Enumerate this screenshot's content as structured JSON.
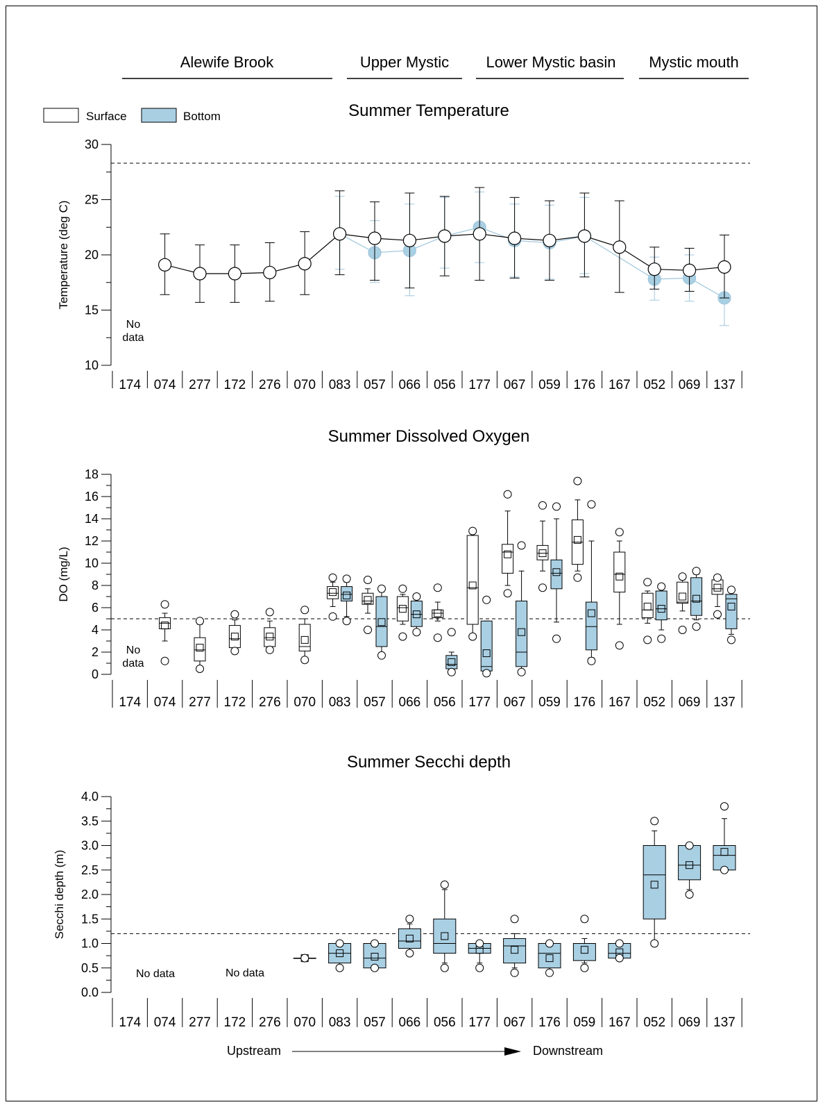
{
  "regions": [
    {
      "label": "Alewife Brook"
    },
    {
      "label": "Upper Mystic"
    },
    {
      "label": "Lower Mystic basin"
    },
    {
      "label": "Mystic mouth"
    }
  ],
  "legend": {
    "surface": "Surface",
    "bottom": "Bottom"
  },
  "colors": {
    "bottom_fill": "#a9cfe3",
    "bottom_line": "#9fc6dc",
    "surface_fill": "#ffffff",
    "ink": "#000000"
  },
  "direction": {
    "upstream": "Upstream",
    "downstream": "Downstream"
  },
  "chart_data": [
    {
      "type": "line",
      "title": "Summer Temperature",
      "ylabel": "Temperature (deg C)",
      "ylim": [
        10,
        30
      ],
      "yticks": [
        10,
        15,
        20,
        25,
        30
      ],
      "reference_line": 28.3,
      "categories": [
        "174",
        "074",
        "277",
        "172",
        "276",
        "070",
        "083",
        "057",
        "066",
        "056",
        "177",
        "067",
        "059",
        "176",
        "167",
        "052",
        "069",
        "137"
      ],
      "no_data_label": "No\ndata",
      "series": [
        {
          "name": "Surface",
          "mean": [
            null,
            19.1,
            18.3,
            18.3,
            18.4,
            19.2,
            21.9,
            21.5,
            21.3,
            21.7,
            21.9,
            21.5,
            21.3,
            21.7,
            20.7,
            18.7,
            18.6,
            18.9
          ],
          "lower": [
            null,
            16.4,
            15.7,
            15.7,
            15.8,
            16.4,
            18.2,
            17.7,
            17.0,
            18.1,
            17.7,
            17.9,
            17.7,
            18.0,
            16.6,
            16.9,
            16.7,
            16.1
          ],
          "upper": [
            null,
            21.9,
            20.9,
            20.9,
            21.1,
            22.1,
            25.8,
            24.8,
            25.6,
            25.3,
            26.1,
            25.2,
            24.9,
            25.6,
            24.9,
            20.7,
            20.6,
            21.8
          ]
        },
        {
          "name": "Bottom",
          "mean": [
            null,
            null,
            null,
            null,
            null,
            null,
            21.9,
            20.2,
            20.4,
            21.7,
            22.5,
            21.3,
            21.1,
            21.7,
            null,
            17.8,
            17.9,
            16.1
          ],
          "lower": [
            null,
            null,
            null,
            null,
            null,
            null,
            18.7,
            17.5,
            16.3,
            18.8,
            19.3,
            18.0,
            17.8,
            18.3,
            null,
            15.9,
            15.8,
            13.6
          ],
          "upper": [
            null,
            null,
            null,
            null,
            null,
            null,
            25.3,
            23.1,
            24.6,
            25.2,
            25.7,
            24.6,
            24.5,
            25.2,
            null,
            19.8,
            20.0,
            19.0
          ]
        }
      ]
    },
    {
      "type": "box",
      "title": "Summer Dissolved Oxygen",
      "ylabel": "DO (mg/L)",
      "ylim": [
        0,
        18
      ],
      "yticks": [
        0,
        2,
        4,
        6,
        8,
        10,
        12,
        14,
        16,
        18
      ],
      "reference_line": 5,
      "categories": [
        "174",
        "074",
        "277",
        "172",
        "276",
        "070",
        "083",
        "057",
        "066",
        "056",
        "177",
        "067",
        "059",
        "176",
        "167",
        "052",
        "069",
        "137"
      ],
      "no_data_label": "No\ndata",
      "series": [
        {
          "name": "Surface",
          "boxes": [
            null,
            {
              "q1": 4.1,
              "med": 4.6,
              "q3": 5.1,
              "lw": 3.0,
              "uw": 5.5,
              "mean": 4.4,
              "outliers": [
                6.3,
                1.2
              ]
            },
            {
              "q1": 1.2,
              "med": 2.2,
              "q3": 3.3,
              "lw": 0.7,
              "uw": 4.5,
              "mean": 2.4,
              "outliers": [
                4.8,
                0.5
              ]
            },
            {
              "q1": 2.4,
              "med": 3.2,
              "q3": 4.4,
              "lw": 2.1,
              "uw": 4.9,
              "mean": 3.4,
              "outliers": [
                5.4,
                2.1
              ]
            },
            {
              "q1": 2.5,
              "med": 3.3,
              "q3": 4.2,
              "lw": 2.1,
              "uw": 4.8,
              "mean": 3.4,
              "outliers": [
                5.6,
                2.2
              ]
            },
            {
              "q1": 2.1,
              "med": 2.5,
              "q3": 4.5,
              "lw": 1.5,
              "uw": 5.0,
              "mean": 3.1,
              "outliers": [
                5.8,
                1.3
              ]
            },
            {
              "q1": 6.8,
              "med": 7.3,
              "q3": 7.9,
              "lw": 6.1,
              "uw": 8.3,
              "mean": 7.4,
              "outliers": [
                8.7,
                5.2
              ]
            },
            {
              "q1": 6.3,
              "med": 6.6,
              "q3": 7.3,
              "lw": 5.5,
              "uw": 7.7,
              "mean": 6.7,
              "outliers": [
                8.5,
                4.0
              ]
            },
            {
              "q1": 4.8,
              "med": 6.0,
              "q3": 7.0,
              "lw": 4.5,
              "uw": 7.2,
              "mean": 5.9,
              "outliers": [
                7.7,
                3.4
              ]
            },
            {
              "q1": 5.1,
              "med": 5.5,
              "q3": 5.8,
              "lw": 4.8,
              "uw": 6.5,
              "mean": 5.5,
              "outliers": [
                7.8,
                3.3
              ]
            },
            {
              "q1": 4.5,
              "med": 7.8,
              "q3": 12.5,
              "lw": 3.6,
              "uw": 12.5,
              "mean": 8.0,
              "outliers": [
                12.9,
                3.4
              ]
            },
            {
              "q1": 9.1,
              "med": 11.0,
              "q3": 11.7,
              "lw": 8.0,
              "uw": 14.7,
              "mean": 10.8,
              "outliers": [
                16.2,
                7.3
              ]
            },
            {
              "q1": 10.3,
              "med": 10.9,
              "q3": 11.6,
              "lw": 9.3,
              "uw": 13.8,
              "mean": 10.9,
              "outliers": [
                15.2,
                7.8
              ]
            },
            {
              "q1": 9.9,
              "med": 11.9,
              "q3": 13.9,
              "lw": 9.3,
              "uw": 15.7,
              "mean": 12.1,
              "outliers": [
                17.4,
                8.7
              ]
            },
            {
              "q1": 7.4,
              "med": 9.0,
              "q3": 11.0,
              "lw": 4.5,
              "uw": 12.0,
              "mean": 8.8,
              "outliers": [
                12.8,
                2.6
              ]
            },
            {
              "q1": 5.1,
              "med": 5.8,
              "q3": 7.3,
              "lw": 4.6,
              "uw": 7.5,
              "mean": 6.1,
              "outliers": [
                8.3,
                3.1
              ]
            },
            {
              "q1": 6.4,
              "med": 6.5,
              "q3": 8.3,
              "lw": 5.7,
              "uw": 8.5,
              "mean": 7.0,
              "outliers": [
                8.8,
                4.0
              ]
            },
            {
              "q1": 7.2,
              "med": 7.7,
              "q3": 8.5,
              "lw": 6.1,
              "uw": 8.6,
              "mean": 7.8,
              "outliers": [
                8.7,
                5.4
              ]
            }
          ]
        },
        {
          "name": "Bottom",
          "boxes": [
            null,
            null,
            null,
            null,
            null,
            null,
            {
              "q1": 6.6,
              "med": 7.2,
              "q3": 7.9,
              "lw": 5.2,
              "uw": 8.3,
              "mean": 7.1,
              "outliers": [
                8.6,
                4.8
              ]
            },
            {
              "q1": 2.5,
              "med": 4.3,
              "q3": 7.0,
              "lw": 1.9,
              "uw": 7.4,
              "mean": 4.7,
              "outliers": [
                7.7,
                1.7
              ]
            },
            {
              "q1": 4.3,
              "med": 5.4,
              "q3": 6.6,
              "lw": 4.0,
              "uw": 6.8,
              "mean": 5.4,
              "outliers": [
                7.0,
                3.8
              ]
            },
            {
              "q1": 0.5,
              "med": 0.9,
              "q3": 1.7,
              "lw": 0.4,
              "uw": 2.0,
              "mean": 1.1,
              "outliers": [
                3.8,
                0.2
              ]
            },
            {
              "q1": 0.3,
              "med": 0.7,
              "q3": 4.8,
              "lw": 0.1,
              "uw": 4.8,
              "mean": 1.9,
              "outliers": [
                6.7,
                0.1
              ]
            },
            {
              "q1": 0.7,
              "med": 2.0,
              "q3": 6.6,
              "lw": 0.4,
              "uw": 9.3,
              "mean": 3.8,
              "outliers": [
                11.6,
                0.2
              ]
            },
            {
              "q1": 7.7,
              "med": 9.1,
              "q3": 10.3,
              "lw": 4.7,
              "uw": 14.0,
              "mean": 9.2,
              "outliers": [
                15.1,
                3.2
              ]
            },
            {
              "q1": 2.2,
              "med": 4.3,
              "q3": 6.5,
              "lw": 1.5,
              "uw": 12.0,
              "mean": 5.5,
              "outliers": [
                15.3,
                1.2
              ]
            },
            null,
            {
              "q1": 4.9,
              "med": 5.9,
              "q3": 7.5,
              "lw": 4.0,
              "uw": 7.8,
              "mean": 5.9,
              "outliers": [
                7.9,
                3.2
              ]
            },
            {
              "q1": 5.3,
              "med": 6.6,
              "q3": 8.7,
              "lw": 4.9,
              "uw": 9.0,
              "mean": 6.8,
              "outliers": [
                9.3,
                4.3
              ]
            },
            {
              "q1": 4.1,
              "med": 6.8,
              "q3": 7.2,
              "lw": 3.6,
              "uw": 7.4,
              "mean": 6.1,
              "outliers": [
                7.6,
                3.1
              ]
            }
          ]
        }
      ]
    },
    {
      "type": "box",
      "title": "Summer Secchi depth",
      "ylabel": "Secchi depth (m)",
      "ylim": [
        0,
        4
      ],
      "yticks": [
        0.0,
        0.5,
        1.0,
        1.5,
        2.0,
        2.5,
        3.0,
        3.5,
        4.0
      ],
      "yticklabels": [
        "0.0",
        "0.5",
        "1.0",
        "1.5",
        "2.0",
        "2.5",
        "3.0",
        "3.5",
        "4.0"
      ],
      "reference_line": 1.2,
      "categories": [
        "174",
        "074",
        "277",
        "172",
        "276",
        "070",
        "083",
        "057",
        "066",
        "056",
        "177",
        "067",
        "176",
        "059",
        "167",
        "052",
        "069",
        "137"
      ],
      "no_data_labels": [
        "No data",
        "No data"
      ],
      "series": [
        {
          "name": "Bottom",
          "boxes": [
            null,
            null,
            null,
            null,
            null,
            {
              "q1": 0.7,
              "med": 0.7,
              "q3": 0.7,
              "lw": 0.7,
              "uw": 0.7,
              "mean": 0.7,
              "outliers": [
                0.7
              ]
            },
            {
              "q1": 0.6,
              "med": 0.8,
              "q3": 1.0,
              "lw": 0.55,
              "uw": 1.0,
              "mean": 0.8,
              "outliers": [
                1.0,
                0.5
              ]
            },
            {
              "q1": 0.5,
              "med": 0.7,
              "q3": 1.0,
              "lw": 0.5,
              "uw": 1.0,
              "mean": 0.73,
              "outliers": [
                1.0,
                0.5
              ]
            },
            {
              "q1": 0.9,
              "med": 1.05,
              "q3": 1.3,
              "lw": 0.85,
              "uw": 1.4,
              "mean": 1.1,
              "outliers": [
                1.5,
                0.8
              ]
            },
            {
              "q1": 0.8,
              "med": 1.0,
              "q3": 1.5,
              "lw": 0.6,
              "uw": 2.1,
              "mean": 1.15,
              "outliers": [
                2.2,
                0.5
              ]
            },
            {
              "q1": 0.8,
              "med": 0.9,
              "q3": 1.0,
              "lw": 0.6,
              "uw": 1.0,
              "mean": 0.87,
              "outliers": [
                1.0,
                0.5
              ]
            },
            {
              "q1": 0.6,
              "med": 0.95,
              "q3": 1.1,
              "lw": 0.5,
              "uw": 1.2,
              "mean": 0.87,
              "outliers": [
                1.5,
                0.4
              ]
            },
            {
              "q1": 0.5,
              "med": 0.8,
              "q3": 1.0,
              "lw": 0.45,
              "uw": 1.0,
              "mean": 0.7,
              "outliers": [
                1.0,
                0.4
              ]
            },
            {
              "q1": 0.65,
              "med": 1.0,
              "q3": 1.0,
              "lw": 0.6,
              "uw": 1.1,
              "mean": 0.87,
              "outliers": [
                1.5,
                0.5
              ]
            },
            {
              "q1": 0.7,
              "med": 0.8,
              "q3": 1.0,
              "lw": 0.7,
              "uw": 1.0,
              "mean": 0.82,
              "outliers": [
                1.0,
                0.7
              ]
            },
            {
              "q1": 1.5,
              "med": 2.4,
              "q3": 3.0,
              "lw": 1.0,
              "uw": 3.3,
              "mean": 2.2,
              "outliers": [
                3.5,
                1.0
              ]
            },
            {
              "q1": 2.3,
              "med": 2.6,
              "q3": 3.0,
              "lw": 2.1,
              "uw": 3.0,
              "mean": 2.6,
              "outliers": [
                3.0,
                2.0
              ]
            },
            {
              "q1": 2.5,
              "med": 2.8,
              "q3": 3.0,
              "lw": 2.6,
              "uw": 3.55,
              "mean": 2.87,
              "outliers": [
                3.8,
                2.5
              ]
            }
          ]
        }
      ]
    }
  ]
}
